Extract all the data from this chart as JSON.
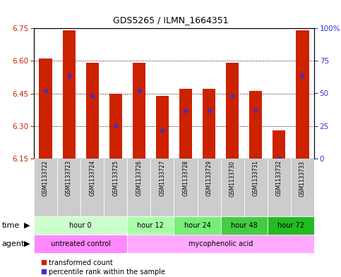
{
  "title": "GDS5265 / ILMN_1664351",
  "samples": [
    "GSM1133722",
    "GSM1133723",
    "GSM1133724",
    "GSM1133725",
    "GSM1133726",
    "GSM1133727",
    "GSM1133728",
    "GSM1133729",
    "GSM1133730",
    "GSM1133731",
    "GSM1133732",
    "GSM1133733"
  ],
  "bar_top": [
    6.61,
    6.74,
    6.59,
    6.45,
    6.59,
    6.44,
    6.47,
    6.47,
    6.59,
    6.46,
    6.28,
    6.74
  ],
  "bar_bottom": 6.15,
  "percentile_values": [
    6.46,
    6.53,
    6.44,
    6.3,
    6.46,
    6.28,
    6.37,
    6.37,
    6.44,
    6.37,
    6.15,
    6.53
  ],
  "ylim": [
    6.15,
    6.75
  ],
  "yticks": [
    6.15,
    6.3,
    6.45,
    6.6,
    6.75
  ],
  "y2ticks": [
    0,
    25,
    50,
    75,
    100
  ],
  "y2tick_labels": [
    "0",
    "25",
    "50",
    "75",
    "100%"
  ],
  "bar_color": "#cc2200",
  "percentile_color": "#3333cc",
  "grid_color": "#000000",
  "time_groups": [
    {
      "label": "hour 0",
      "start": 0,
      "end": 4,
      "color": "#ccffcc"
    },
    {
      "label": "hour 12",
      "start": 4,
      "end": 6,
      "color": "#aaffaa"
    },
    {
      "label": "hour 24",
      "start": 6,
      "end": 8,
      "color": "#77ee77"
    },
    {
      "label": "hour 48",
      "start": 8,
      "end": 10,
      "color": "#44cc44"
    },
    {
      "label": "hour 72",
      "start": 10,
      "end": 12,
      "color": "#22bb22"
    }
  ],
  "agent_groups": [
    {
      "label": "untreated control",
      "start": 0,
      "end": 4,
      "color": "#ff88ff"
    },
    {
      "label": "mycophenolic acid",
      "start": 4,
      "end": 12,
      "color": "#ffaaff"
    }
  ],
  "legend_red_label": "transformed count",
  "legend_blue_label": "percentile rank within the sample",
  "bar_color_hex": "#cc2200",
  "percentile_color_hex": "#3333cc",
  "bg_color": "#ffffff"
}
